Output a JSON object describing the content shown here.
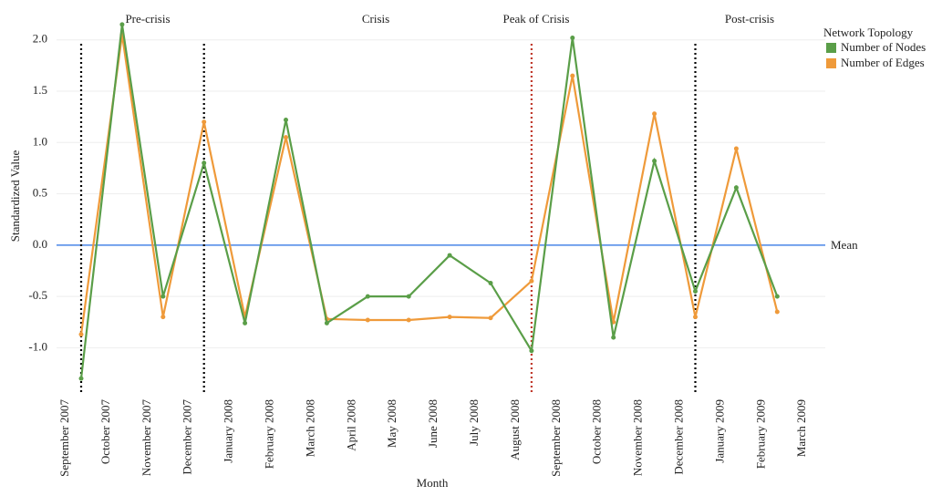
{
  "chart_data": {
    "type": "line",
    "x_label": "Month",
    "y_label": "Standardized Value",
    "categories": [
      "September 2007",
      "October 2007",
      "November 2007",
      "December 2007",
      "January 2008",
      "February 2008",
      "March 2008",
      "April 2008",
      "May 2008",
      "June 2008",
      "July 2008",
      "August 2008",
      "September 2008",
      "October 2008",
      "November 2008",
      "December 2008",
      "January 2009",
      "February 2009",
      "March 2009"
    ],
    "series": [
      {
        "name": "Number of Nodes",
        "color": "#5a9e48",
        "values": [
          -1.3,
          2.15,
          -0.5,
          0.8,
          -0.76,
          1.22,
          -0.76,
          -0.5,
          -0.5,
          -0.1,
          -0.37,
          -1.03,
          2.02,
          -0.9,
          0.82,
          -0.45,
          0.56,
          -0.5,
          null
        ]
      },
      {
        "name": "Number of Edges",
        "color": "#ef9a3a",
        "values": [
          -0.87,
          2.05,
          -0.7,
          1.2,
          -0.7,
          1.05,
          -0.72,
          -0.73,
          -0.73,
          -0.7,
          -0.71,
          -0.35,
          1.65,
          -0.75,
          1.28,
          -0.7,
          0.94,
          -0.65,
          null
        ]
      }
    ],
    "legend_title": "Network Topology",
    "legend": "top-right",
    "mean_line": {
      "value": 0,
      "label": "Mean",
      "color": "#4a86e8"
    },
    "phase_lines": [
      {
        "index": 0,
        "color": "#000000"
      },
      {
        "index": 3,
        "color": "#000000"
      },
      {
        "index": 11,
        "color": "#c0392b"
      },
      {
        "index": 15,
        "color": "#000000"
      }
    ],
    "annotations": [
      {
        "text": "Pre-crisis",
        "color": "#000000"
      },
      {
        "text": "Crisis",
        "color": "#000000"
      },
      {
        "text": "Peak of Crisis",
        "color": "#a93226"
      },
      {
        "text": "Post-crisis",
        "color": "#000000"
      }
    ],
    "ylim": [
      -1.45,
      2.3
    ],
    "yticks": [
      {
        "value": -1,
        "label": "-1.0"
      },
      -0.5,
      {
        "value": 0,
        "label": "0.0"
      },
      0.5,
      {
        "value": 1,
        "label": "1.0"
      },
      1.5,
      {
        "value": 2,
        "label": "2.0"
      }
    ],
    "grid": true
  }
}
